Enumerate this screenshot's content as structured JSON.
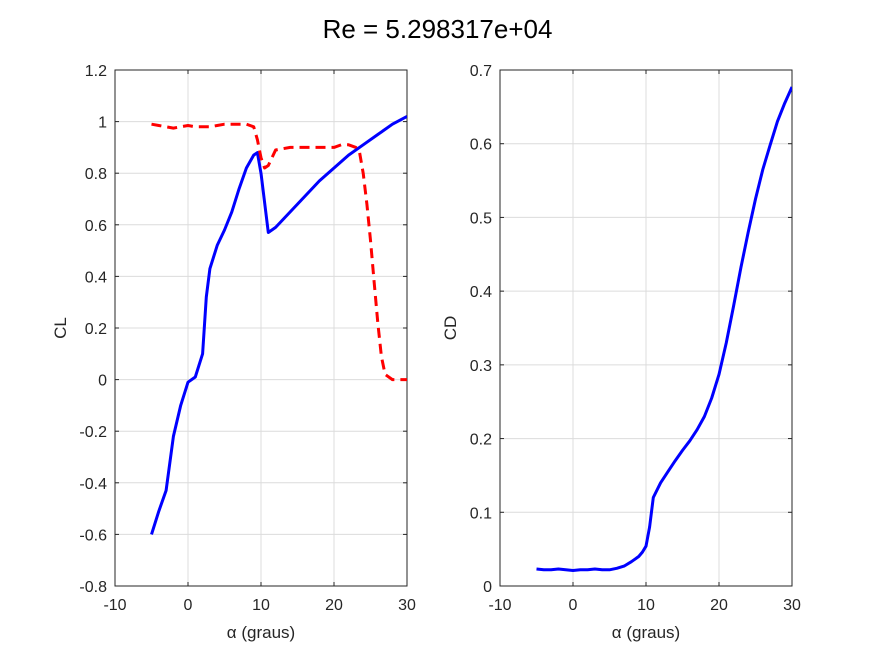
{
  "figure_title": "Re = 5.298317e+04",
  "chart_data": [
    {
      "type": "line",
      "xlabel": "α (graus)",
      "ylabel": "CL",
      "xlim": [
        -10,
        30
      ],
      "ylim": [
        -0.8,
        1.2
      ],
      "xticks": [
        -10,
        0,
        10,
        20,
        30
      ],
      "yticks": [
        -0.8,
        -0.6,
        -0.4,
        -0.2,
        0,
        0.2,
        0.4,
        0.6,
        0.8,
        1,
        1.2
      ],
      "xtick_labels": [
        "-10",
        "0",
        "10",
        "20",
        "30"
      ],
      "ytick_labels": [
        "-0.8",
        "-0.6",
        "-0.4",
        "-0.2",
        "0",
        "0.2",
        "0.4",
        "0.6",
        "0.8",
        "1",
        "1.2"
      ],
      "grid": true,
      "series": [
        {
          "color": "#0000ff",
          "style": "solid",
          "x": [
            -5,
            -4,
            -3,
            -2,
            -1,
            0,
            1,
            2,
            2.5,
            3,
            4,
            5,
            6,
            7,
            8,
            9,
            9.5,
            10,
            11,
            12,
            14,
            16,
            18,
            20,
            22,
            24,
            26,
            28,
            30
          ],
          "y": [
            -0.6,
            -0.51,
            -0.43,
            -0.22,
            -0.1,
            -0.01,
            0.01,
            0.1,
            0.32,
            0.43,
            0.52,
            0.58,
            0.65,
            0.74,
            0.82,
            0.87,
            0.88,
            0.8,
            0.57,
            0.59,
            0.65,
            0.71,
            0.77,
            0.82,
            0.87,
            0.91,
            0.95,
            0.99,
            1.02
          ]
        },
        {
          "color": "#ff0000",
          "style": "dashed",
          "x": [
            -5,
            -4,
            -3,
            -2,
            -1,
            0,
            1,
            2,
            3,
            4,
            5,
            6,
            7,
            8,
            9,
            9.5,
            10,
            10.5,
            11,
            12,
            14,
            16,
            18,
            20,
            21,
            22,
            23,
            23.5,
            24,
            24.5,
            25,
            25.5,
            26,
            26.5,
            27,
            28,
            29,
            30
          ],
          "y": [
            0.99,
            0.985,
            0.98,
            0.975,
            0.98,
            0.985,
            0.98,
            0.98,
            0.98,
            0.985,
            0.99,
            0.99,
            0.99,
            0.99,
            0.98,
            0.93,
            0.86,
            0.82,
            0.83,
            0.89,
            0.9,
            0.9,
            0.9,
            0.9,
            0.91,
            0.91,
            0.9,
            0.88,
            0.8,
            0.68,
            0.54,
            0.38,
            0.22,
            0.09,
            0.02,
            0.0,
            0.0,
            0.0
          ]
        }
      ]
    },
    {
      "type": "line",
      "xlabel": "α (graus)",
      "ylabel": "CD",
      "xlim": [
        -10,
        30
      ],
      "ylim": [
        0,
        0.7
      ],
      "xticks": [
        -10,
        0,
        10,
        20,
        30
      ],
      "yticks": [
        0,
        0.1,
        0.2,
        0.3,
        0.4,
        0.5,
        0.6,
        0.7
      ],
      "xtick_labels": [
        "-10",
        "0",
        "10",
        "20",
        "30"
      ],
      "ytick_labels": [
        "0",
        "0.1",
        "0.2",
        "0.3",
        "0.4",
        "0.5",
        "0.6",
        "0.7"
      ],
      "grid": true,
      "series": [
        {
          "color": "#0000ff",
          "style": "solid",
          "x": [
            -5,
            -4,
            -3,
            -2,
            -1,
            0,
            1,
            2,
            3,
            4,
            5,
            6,
            7,
            8,
            9,
            9.5,
            10,
            10.5,
            11,
            12,
            13,
            14,
            15,
            16,
            17,
            18,
            19,
            20,
            21,
            22,
            23,
            24,
            25,
            26,
            27,
            28,
            29,
            30
          ],
          "y": [
            0.023,
            0.022,
            0.022,
            0.023,
            0.022,
            0.021,
            0.022,
            0.022,
            0.023,
            0.022,
            0.022,
            0.024,
            0.027,
            0.033,
            0.04,
            0.046,
            0.054,
            0.08,
            0.12,
            0.14,
            0.155,
            0.17,
            0.184,
            0.197,
            0.212,
            0.23,
            0.255,
            0.287,
            0.33,
            0.38,
            0.432,
            0.48,
            0.525,
            0.565,
            0.598,
            0.63,
            0.655,
            0.677
          ]
        }
      ]
    }
  ]
}
